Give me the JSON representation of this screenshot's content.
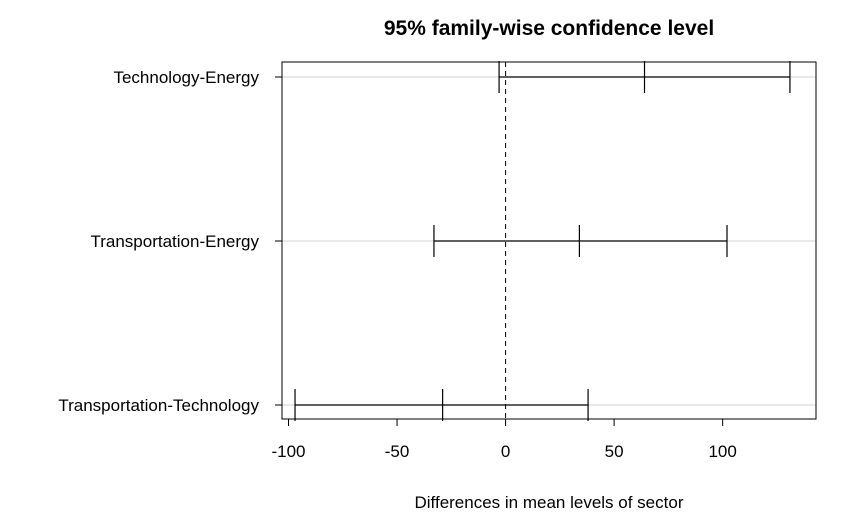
{
  "chart_data": {
    "type": "interval",
    "title": "95% family-wise confidence level",
    "xlabel": "Differences in mean levels of sector",
    "ylabel": "",
    "xlim": [
      -103,
      143
    ],
    "xticks": [
      -100,
      -50,
      0,
      50,
      100
    ],
    "tick_labels": [
      "-100",
      "-50",
      "0",
      "50",
      "100"
    ],
    "reference_line": 0,
    "grid": "horizontal",
    "comparisons": [
      {
        "label": "Technology-Energy",
        "lower": -3,
        "estimate": 64,
        "upper": 131
      },
      {
        "label": "Transportation-Energy",
        "lower": -33,
        "estimate": 34,
        "upper": 102
      },
      {
        "label": "Transportation-Technology",
        "lower": -97,
        "estimate": -29,
        "upper": 38
      }
    ]
  },
  "colors": {
    "line": "#000000",
    "grid": "#d3d3d3",
    "background": "#ffffff"
  }
}
